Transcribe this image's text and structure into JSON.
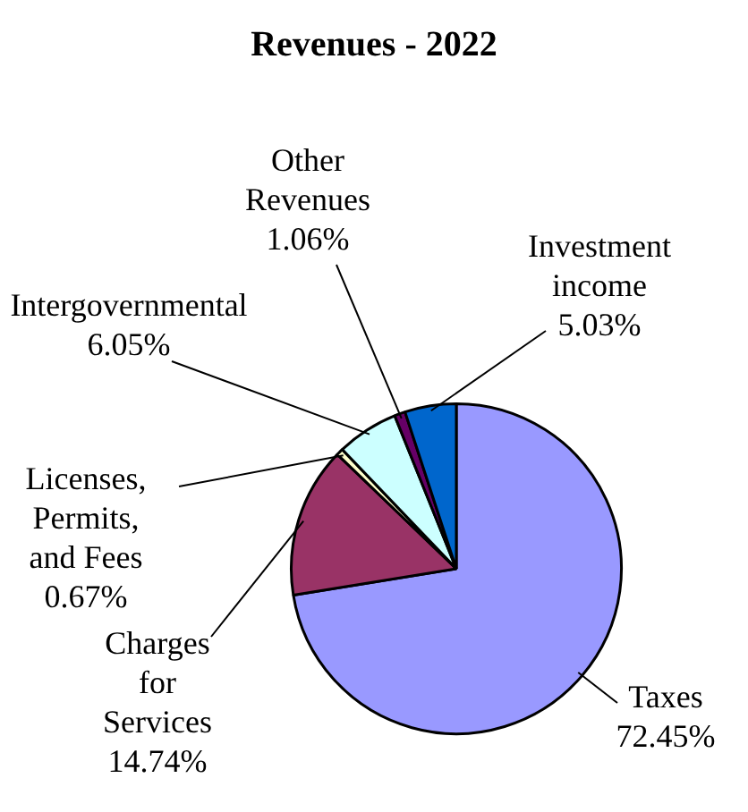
{
  "chart_data": {
    "type": "pie",
    "title": "Revenues - 2022",
    "categories": [
      "Taxes",
      "Charges for Services",
      "Licenses, Permits, and Fees",
      "Intergovernmental",
      "Other Revenues",
      "Investment income"
    ],
    "values": [
      72.45,
      14.74,
      0.67,
      6.05,
      1.06,
      5.03
    ],
    "colors": [
      "#9999ff",
      "#993366",
      "#ffffcc",
      "#ccffff",
      "#660066",
      "#0066cc"
    ],
    "value_labels": [
      "72.45%",
      "14.74%",
      "0.67%",
      "6.05%",
      "1.06%",
      "5.03%"
    ],
    "legend": false
  }
}
